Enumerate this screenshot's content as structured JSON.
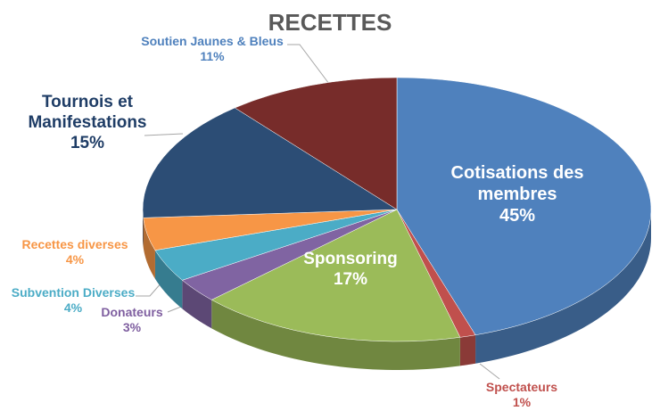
{
  "chart_data": {
    "type": "pie",
    "title": "RECETTES",
    "categories": [
      "Cotisations des membres",
      "Spectateurs",
      "Sponsoring",
      "Donateurs",
      "Subvention Diverses",
      "Recettes diverses",
      "Tournois et Manifestations",
      "Soutien Jaunes & Bleus"
    ],
    "values": [
      45,
      1,
      17,
      3,
      4,
      4,
      15,
      11
    ],
    "value_labels": [
      "45%",
      "1%",
      "17%",
      "3%",
      "4%",
      "4%",
      "15%",
      "11%"
    ],
    "colors": [
      "#4f81bd",
      "#c0504d",
      "#9bbb59",
      "#8064a2",
      "#4bacc6",
      "#f79646",
      "#2c4d75",
      "#772c2a"
    ]
  }
}
